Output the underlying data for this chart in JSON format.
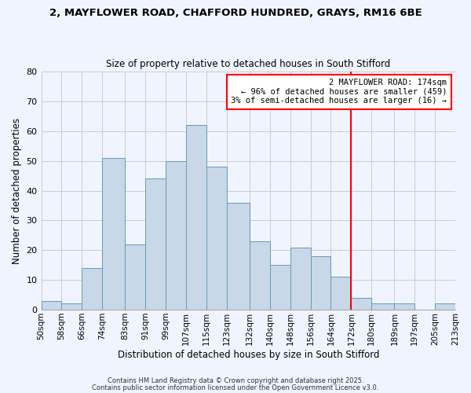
{
  "title_line1": "2, MAYFLOWER ROAD, CHAFFORD HUNDRED, GRAYS, RM16 6BE",
  "title_line2": "Size of property relative to detached houses in South Stifford",
  "xlabel": "Distribution of detached houses by size in South Stifford",
  "ylabel": "Number of detached properties",
  "bin_labels": [
    "50sqm",
    "58sqm",
    "66sqm",
    "74sqm",
    "83sqm",
    "91sqm",
    "99sqm",
    "107sqm",
    "115sqm",
    "123sqm",
    "132sqm",
    "140sqm",
    "148sqm",
    "156sqm",
    "164sqm",
    "172sqm",
    "180sqm",
    "189sqm",
    "197sqm",
    "205sqm",
    "213sqm"
  ],
  "bin_edges": [
    50,
    58,
    66,
    74,
    83,
    91,
    99,
    107,
    115,
    123,
    132,
    140,
    148,
    156,
    164,
    172,
    180,
    189,
    197,
    205,
    213
  ],
  "counts": [
    3,
    2,
    14,
    51,
    22,
    44,
    50,
    62,
    48,
    36,
    23,
    15,
    21,
    18,
    11,
    4,
    2,
    2,
    0,
    2
  ],
  "bar_color": "#c8d8e8",
  "bar_edge_color": "#6699bb",
  "grid_color": "#cccccc",
  "vline_x": 172,
  "vline_color": "red",
  "annotation_text": "2 MAYFLOWER ROAD: 174sqm\n← 96% of detached houses are smaller (459)\n3% of semi-detached houses are larger (16) →",
  "annotation_box_color": "white",
  "annotation_box_edge": "red",
  "ylim": [
    0,
    80
  ],
  "yticks": [
    0,
    10,
    20,
    30,
    40,
    50,
    60,
    70,
    80
  ],
  "footer1": "Contains HM Land Registry data © Crown copyright and database right 2025.",
  "footer2": "Contains public sector information licensed under the Open Government Licence v3.0.",
  "bg_color": "#f0f4ff"
}
